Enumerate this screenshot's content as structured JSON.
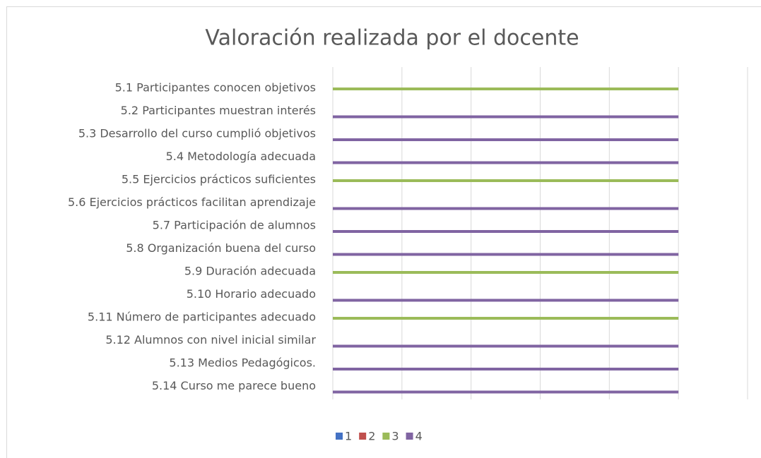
{
  "chart_data": {
    "type": "hbar",
    "title": "Valoración realizada por el docente",
    "categories": [
      "5.1 Participantes conocen objetivos",
      "5.2 Participantes muestran interés",
      "5.3 Desarrollo del curso cumplió objetivos",
      "5.4 Metodología adecuada",
      "5.5 Ejercicios prácticos suficientes",
      "5.6 Ejercicios prácticos facilitan aprendizaje",
      "5.7 Participación de alumnos",
      "5.8 Organización buena del curso",
      "5.9 Duración adecuada",
      "5.10 Horario adecuado",
      "5.11 Número de participantes adecuado",
      "5.12 Alumnos con nivel inicial similar",
      "5.13 Medios Pedagógicos.",
      "5.14 Curso me parece bueno"
    ],
    "series": [
      {
        "name": "1",
        "color": "#4472c4",
        "values": [
          0,
          0,
          0,
          0,
          0,
          0,
          0,
          0,
          0,
          0,
          0,
          0,
          0,
          0
        ]
      },
      {
        "name": "2",
        "color": "#c0504d",
        "values": [
          0,
          0,
          0,
          0,
          0,
          0,
          0,
          0,
          0,
          0,
          0,
          0,
          0,
          0
        ]
      },
      {
        "name": "3",
        "color": "#9bbb59",
        "values": [
          1,
          0,
          0,
          0,
          1,
          0,
          0,
          0,
          1,
          0,
          1,
          0,
          0,
          0
        ]
      },
      {
        "name": "4",
        "color": "#8064a2",
        "values": [
          0,
          1,
          1,
          1,
          0,
          1,
          1,
          1,
          0,
          1,
          0,
          1,
          1,
          1
        ]
      }
    ],
    "xlim": [
      0,
      1.2
    ],
    "xticks": [
      0,
      0.2,
      0.4,
      0.6,
      0.8,
      1,
      1.2
    ],
    "grid": true,
    "legend": "bottom"
  }
}
